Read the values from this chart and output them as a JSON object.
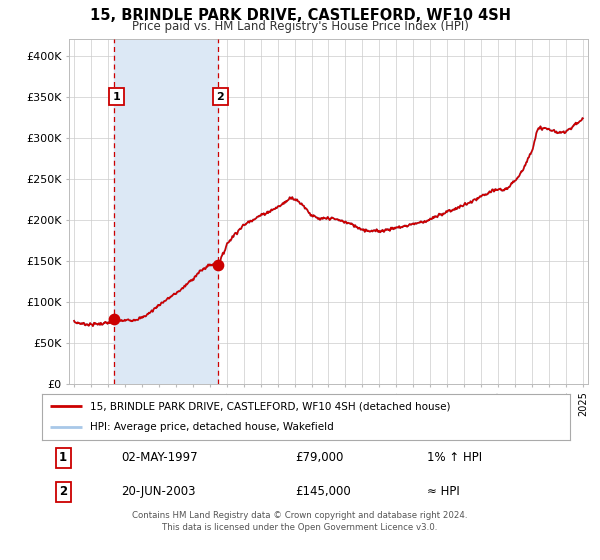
{
  "title": "15, BRINDLE PARK DRIVE, CASTLEFORD, WF10 4SH",
  "subtitle": "Price paid vs. HM Land Registry's House Price Index (HPI)",
  "legend_line1": "15, BRINDLE PARK DRIVE, CASTLEFORD, WF10 4SH (detached house)",
  "legend_line2": "HPI: Average price, detached house, Wakefield",
  "sale1_date": 1997.34,
  "sale1_price": 79000,
  "sale2_date": 2003.47,
  "sale2_price": 145000,
  "table_data": [
    [
      "1",
      "02-MAY-1997",
      "£79,000",
      "1% ↑ HPI"
    ],
    [
      "2",
      "20-JUN-2003",
      "£145,000",
      "≈ HPI"
    ]
  ],
  "hpi_line_color": "#a8c8e8",
  "price_line_color": "#cc0000",
  "shaded_region_color": "#dce8f5",
  "dashed_line_color": "#cc0000",
  "background_color": "#ffffff",
  "grid_color": "#cccccc",
  "ylim": [
    0,
    420000
  ],
  "xlim_start": 1994.7,
  "xlim_end": 2025.3,
  "yticks": [
    0,
    50000,
    100000,
    150000,
    200000,
    250000,
    300000,
    350000,
    400000
  ],
  "footer_line1": "Contains HM Land Registry data © Crown copyright and database right 2024.",
  "footer_line2": "This data is licensed under the Open Government Licence v3.0."
}
